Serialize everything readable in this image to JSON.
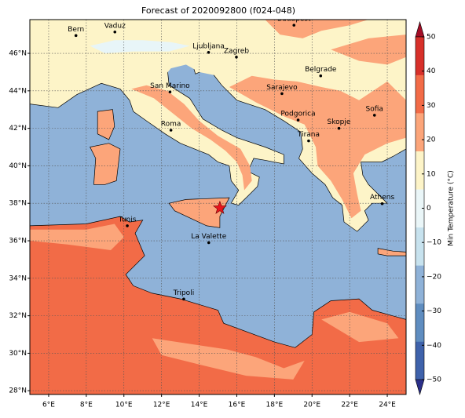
{
  "chart_data": {
    "type": "map",
    "title": "Forecast of 2020092800 (f024-048)",
    "xlim": [
      5,
      25
    ],
    "ylim": [
      27.8,
      47.8
    ],
    "xticks": [
      {
        "value": 6,
        "label": "6°E"
      },
      {
        "value": 8,
        "label": "8°E"
      },
      {
        "value": 10,
        "label": "10°E"
      },
      {
        "value": 12,
        "label": "12°E"
      },
      {
        "value": 14,
        "label": "14°E"
      },
      {
        "value": 16,
        "label": "16°E"
      },
      {
        "value": 18,
        "label": "18°E"
      },
      {
        "value": 20,
        "label": "20°E"
      },
      {
        "value": 22,
        "label": "22°E"
      },
      {
        "value": 24,
        "label": "24°E"
      }
    ],
    "yticks": [
      {
        "value": 28,
        "label": "28°N"
      },
      {
        "value": 30,
        "label": "30°N"
      },
      {
        "value": 32,
        "label": "32°N"
      },
      {
        "value": 34,
        "label": "34°N"
      },
      {
        "value": 36,
        "label": "36°N"
      },
      {
        "value": 38,
        "label": "38°N"
      },
      {
        "value": 40,
        "label": "40°N"
      },
      {
        "value": 42,
        "label": "42°N"
      },
      {
        "value": 44,
        "label": "44°N"
      },
      {
        "value": 46,
        "label": "46°N"
      }
    ],
    "grid": true,
    "cities": [
      "Bern",
      "Vaduz",
      "Ljubljana",
      "Zagreb",
      "Budapest",
      "Belgrade",
      "Sarajevo",
      "San Marino",
      "Roma",
      "Podgorica",
      "Skopje",
      "Sofia",
      "Tirana",
      "Athens",
      "Tunis",
      "La Valette",
      "Tripoli"
    ],
    "colorbar": {
      "label": "Min Temperature (°C)",
      "lim": [
        -50,
        50
      ],
      "ticks": [
        {
          "value": -50,
          "label": "−50"
        },
        {
          "value": -40,
          "label": "−40"
        },
        {
          "value": -30,
          "label": "−30"
        },
        {
          "value": -20,
          "label": "−20"
        },
        {
          "value": -10,
          "label": "−10"
        },
        0,
        10,
        20,
        30,
        40,
        50
      ],
      "colors": [
        "#2b2f8a",
        "#3f62ab",
        "#5f8dc0",
        "#8fb2d8",
        "#c7e2ee",
        "#eaf6f8",
        "#fdf4c8",
        "#fca57a",
        "#f26b47",
        "#d7302a",
        "#a30d26"
      ]
    }
  }
}
